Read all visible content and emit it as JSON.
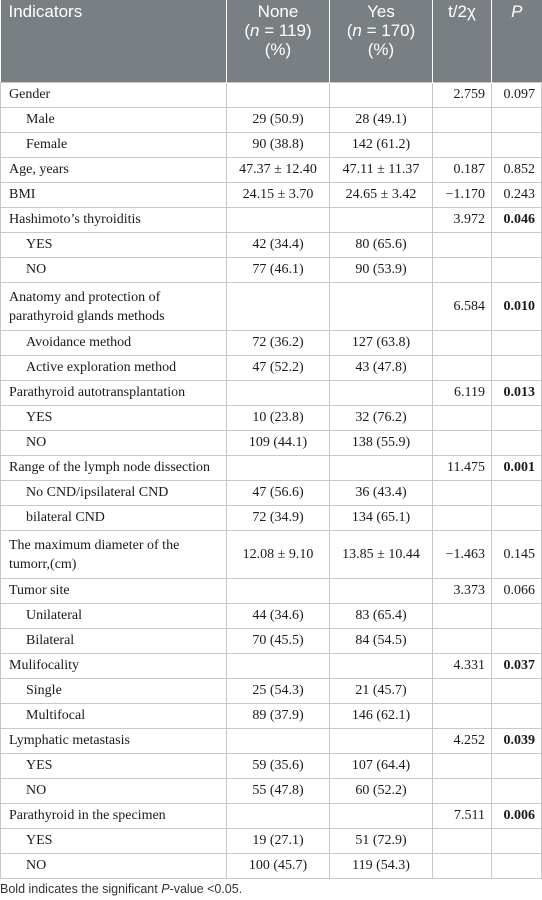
{
  "header": {
    "indicators": "Indicators",
    "none_title": "None",
    "none_n_eq": " = 119)",
    "yes_title": "Yes",
    "yes_n_eq": " = 170)",
    "pct": "(%)",
    "n_letter": "n",
    "open_paren": "(",
    "stat": "t/2χ",
    "p": "P"
  },
  "rows": [
    {
      "label": "Gender",
      "none": "",
      "yes": "",
      "stat": "2.759",
      "p": "0.097",
      "sig": false
    },
    {
      "label": "Male",
      "none": "29 (50.9)",
      "yes": "28 (49.1)",
      "stat": "",
      "p": "",
      "sig": false
    },
    {
      "label": "Female",
      "none": "90 (38.8)",
      "yes": "142 (61.2)",
      "stat": "",
      "p": "",
      "sig": false
    },
    {
      "label": "Age, years",
      "none": "47.37 ± 12.40",
      "yes": "47.11 ± 11.37",
      "stat": "0.187",
      "p": "0.852",
      "sig": false
    },
    {
      "label": "BMI",
      "none": "24.15 ± 3.70",
      "yes": "24.65 ± 3.42",
      "stat": "−1.170",
      "p": "0.243",
      "sig": false
    },
    {
      "label": "Hashimoto’s thyroiditis",
      "none": "",
      "yes": "",
      "stat": "3.972",
      "p": "0.046",
      "sig": true
    },
    {
      "label": "YES",
      "none": "42 (34.4)",
      "yes": "80 (65.6)",
      "stat": "",
      "p": "",
      "sig": false
    },
    {
      "label": "NO",
      "none": "77 (46.1)",
      "yes": "90 (53.9)",
      "stat": "",
      "p": "",
      "sig": false
    },
    {
      "label": "Anatomy and protection of parathyroid glands methods",
      "none": "",
      "yes": "",
      "stat": "6.584",
      "p": "0.010",
      "sig": true
    },
    {
      "label": "Avoidance method",
      "none": "72 (36.2)",
      "yes": "127 (63.8)",
      "stat": "",
      "p": "",
      "sig": false
    },
    {
      "label": "Active exploration method",
      "none": "47 (52.2)",
      "yes": "43 (47.8)",
      "stat": "",
      "p": "",
      "sig": false
    },
    {
      "label": "Parathyroid autotransplantation",
      "none": "",
      "yes": "",
      "stat": "6.119",
      "p": "0.013",
      "sig": true
    },
    {
      "label": "YES",
      "none": "10 (23.8)",
      "yes": "32 (76.2)",
      "stat": "",
      "p": "",
      "sig": false
    },
    {
      "label": "NO",
      "none": "109 (44.1)",
      "yes": "138 (55.9)",
      "stat": "",
      "p": "",
      "sig": false
    },
    {
      "label": "Range of the lymph node dissection",
      "none": "",
      "yes": "",
      "stat": "11.475",
      "p": "0.001",
      "sig": true
    },
    {
      "label": "No CND/ipsilateral CND",
      "none": "47 (56.6)",
      "yes": "36 (43.4)",
      "stat": "",
      "p": "",
      "sig": false
    },
    {
      "label": "bilateral CND",
      "none": "72 (34.9)",
      "yes": "134 (65.1)",
      "stat": "",
      "p": "",
      "sig": false
    },
    {
      "label": "The maximum diameter of the tumorr,(cm)",
      "none": "12.08 ± 9.10",
      "yes": "13.85 ± 10.44",
      "stat": "−1.463",
      "p": "0.145",
      "sig": false
    },
    {
      "label": "Tumor site",
      "none": "",
      "yes": "",
      "stat": "3.373",
      "p": "0.066",
      "sig": false
    },
    {
      "label": "Unilateral",
      "none": "44 (34.6)",
      "yes": "83 (65.4)",
      "stat": "",
      "p": "",
      "sig": false
    },
    {
      "label": "Bilateral",
      "none": "70 (45.5)",
      "yes": "84 (54.5)",
      "stat": "",
      "p": "",
      "sig": false
    },
    {
      "label": "Mulifocality",
      "none": "",
      "yes": "",
      "stat": "4.331",
      "p": "0.037",
      "sig": true
    },
    {
      "label": "Single",
      "none": "25 (54.3)",
      "yes": "21 (45.7)",
      "stat": "",
      "p": "",
      "sig": false
    },
    {
      "label": "Multifocal",
      "none": "89 (37.9)",
      "yes": "146 (62.1)",
      "stat": "",
      "p": "",
      "sig": false
    },
    {
      "label": "Lymphatic metastasis",
      "none": "",
      "yes": "",
      "stat": "4.252",
      "p": "0.039",
      "sig": true
    },
    {
      "label": "YES",
      "none": "59 (35.6)",
      "yes": "107 (64.4)",
      "stat": "",
      "p": "",
      "sig": false
    },
    {
      "label": "NO",
      "none": "55 (47.8)",
      "yes": "60 (52.2)",
      "stat": "",
      "p": "",
      "sig": false
    },
    {
      "label": "Parathyroid in the specimen",
      "none": "",
      "yes": "",
      "stat": "7.511",
      "p": "0.006",
      "sig": true
    },
    {
      "label": "YES",
      "none": "19 (27.1)",
      "yes": "51 (72.9)",
      "stat": "",
      "p": "",
      "sig": false
    },
    {
      "label": "NO",
      "none": "100 (45.7)",
      "yes": "119 (54.3)",
      "stat": "",
      "p": "",
      "sig": false
    }
  ],
  "footnote": {
    "pre": "Bold indicates the significant ",
    "p_letter": "P",
    "post": "-value <0.05."
  },
  "colors": {
    "header_bg": "#7a7f84",
    "header_text": "#ffffff",
    "grid": "#c9c9c9"
  }
}
